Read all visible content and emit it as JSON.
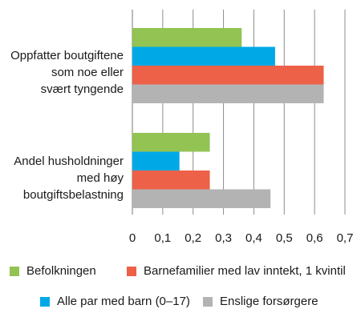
{
  "chart_data": {
    "type": "bar",
    "orientation": "horizontal",
    "categories": [
      [
        "Oppfatter boutgiftene",
        "som noe eller",
        "svært tyngende"
      ],
      [
        "Andel husholdninger",
        "med høy",
        "boutgiftsbelastning"
      ]
    ],
    "series": [
      {
        "name": "Befolkningen",
        "color": "#92c353",
        "values": [
          0.36,
          0.255
        ]
      },
      {
        "name": "Alle par med barn (0–17)",
        "color": "#00a9e6",
        "values": [
          0.47,
          0.155
        ]
      },
      {
        "name": "Barnefamilier med lav inntekt, 1 kvintil",
        "color": "#ec6148",
        "values": [
          0.63,
          0.255
        ]
      },
      {
        "name": "Enslige forsørgere",
        "color": "#b3b3b3",
        "values": [
          0.63,
          0.455
        ]
      }
    ],
    "xlim": [
      0,
      0.7
    ],
    "xticks": [
      "0",
      "0,1",
      "0,2",
      "0,3",
      "0,4",
      "0,5",
      "0,6",
      "0,7"
    ],
    "grid": true,
    "legend_position": "bottom"
  }
}
